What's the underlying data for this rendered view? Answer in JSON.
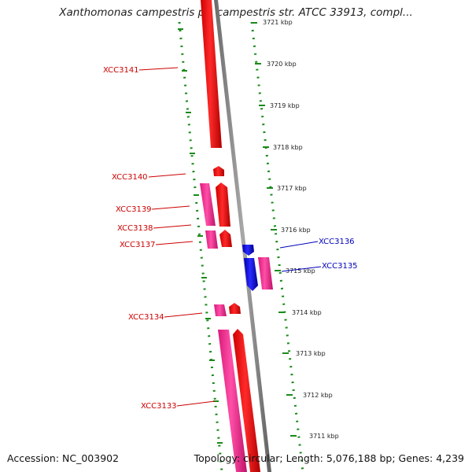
{
  "title": "Xanthomonas campestris pv. campestris str. ATCC 33913, compl...",
  "footer": {
    "accession": "Accession: NC_003902",
    "summary": "Topology: circular; Length: 5,076,188 bp; Genes: 4,239"
  },
  "colors": {
    "forward_cds": "#ff0000",
    "forward_gene": "#ff3399",
    "reverse_cds": "#0000ee",
    "reverse_gene": "#ff3399",
    "backbone": "#808080",
    "ruler": "#1a8a1a",
    "forward_label": "#cc0000",
    "reverse_label": "#0000bb"
  },
  "kbp_ticks": [
    "3721 kbp",
    "3720 kbp",
    "3719 kbp",
    "3718 kbp",
    "3717 kbp",
    "3716 kbp",
    "3715 kbp",
    "3714 kbp",
    "3713 kbp",
    "3712 kbp",
    "3711 kbp"
  ],
  "genes": [
    {
      "name": "XCC3141",
      "strand": "+"
    },
    {
      "name": "XCC3140",
      "strand": "+"
    },
    {
      "name": "XCC3139",
      "strand": "+"
    },
    {
      "name": "XCC3138",
      "strand": "+"
    },
    {
      "name": "XCC3137",
      "strand": "+"
    },
    {
      "name": "XCC3136",
      "strand": "-"
    },
    {
      "name": "XCC3135",
      "strand": "-"
    },
    {
      "name": "XCC3134",
      "strand": "+"
    },
    {
      "name": "XCC3133",
      "strand": "+"
    }
  ]
}
